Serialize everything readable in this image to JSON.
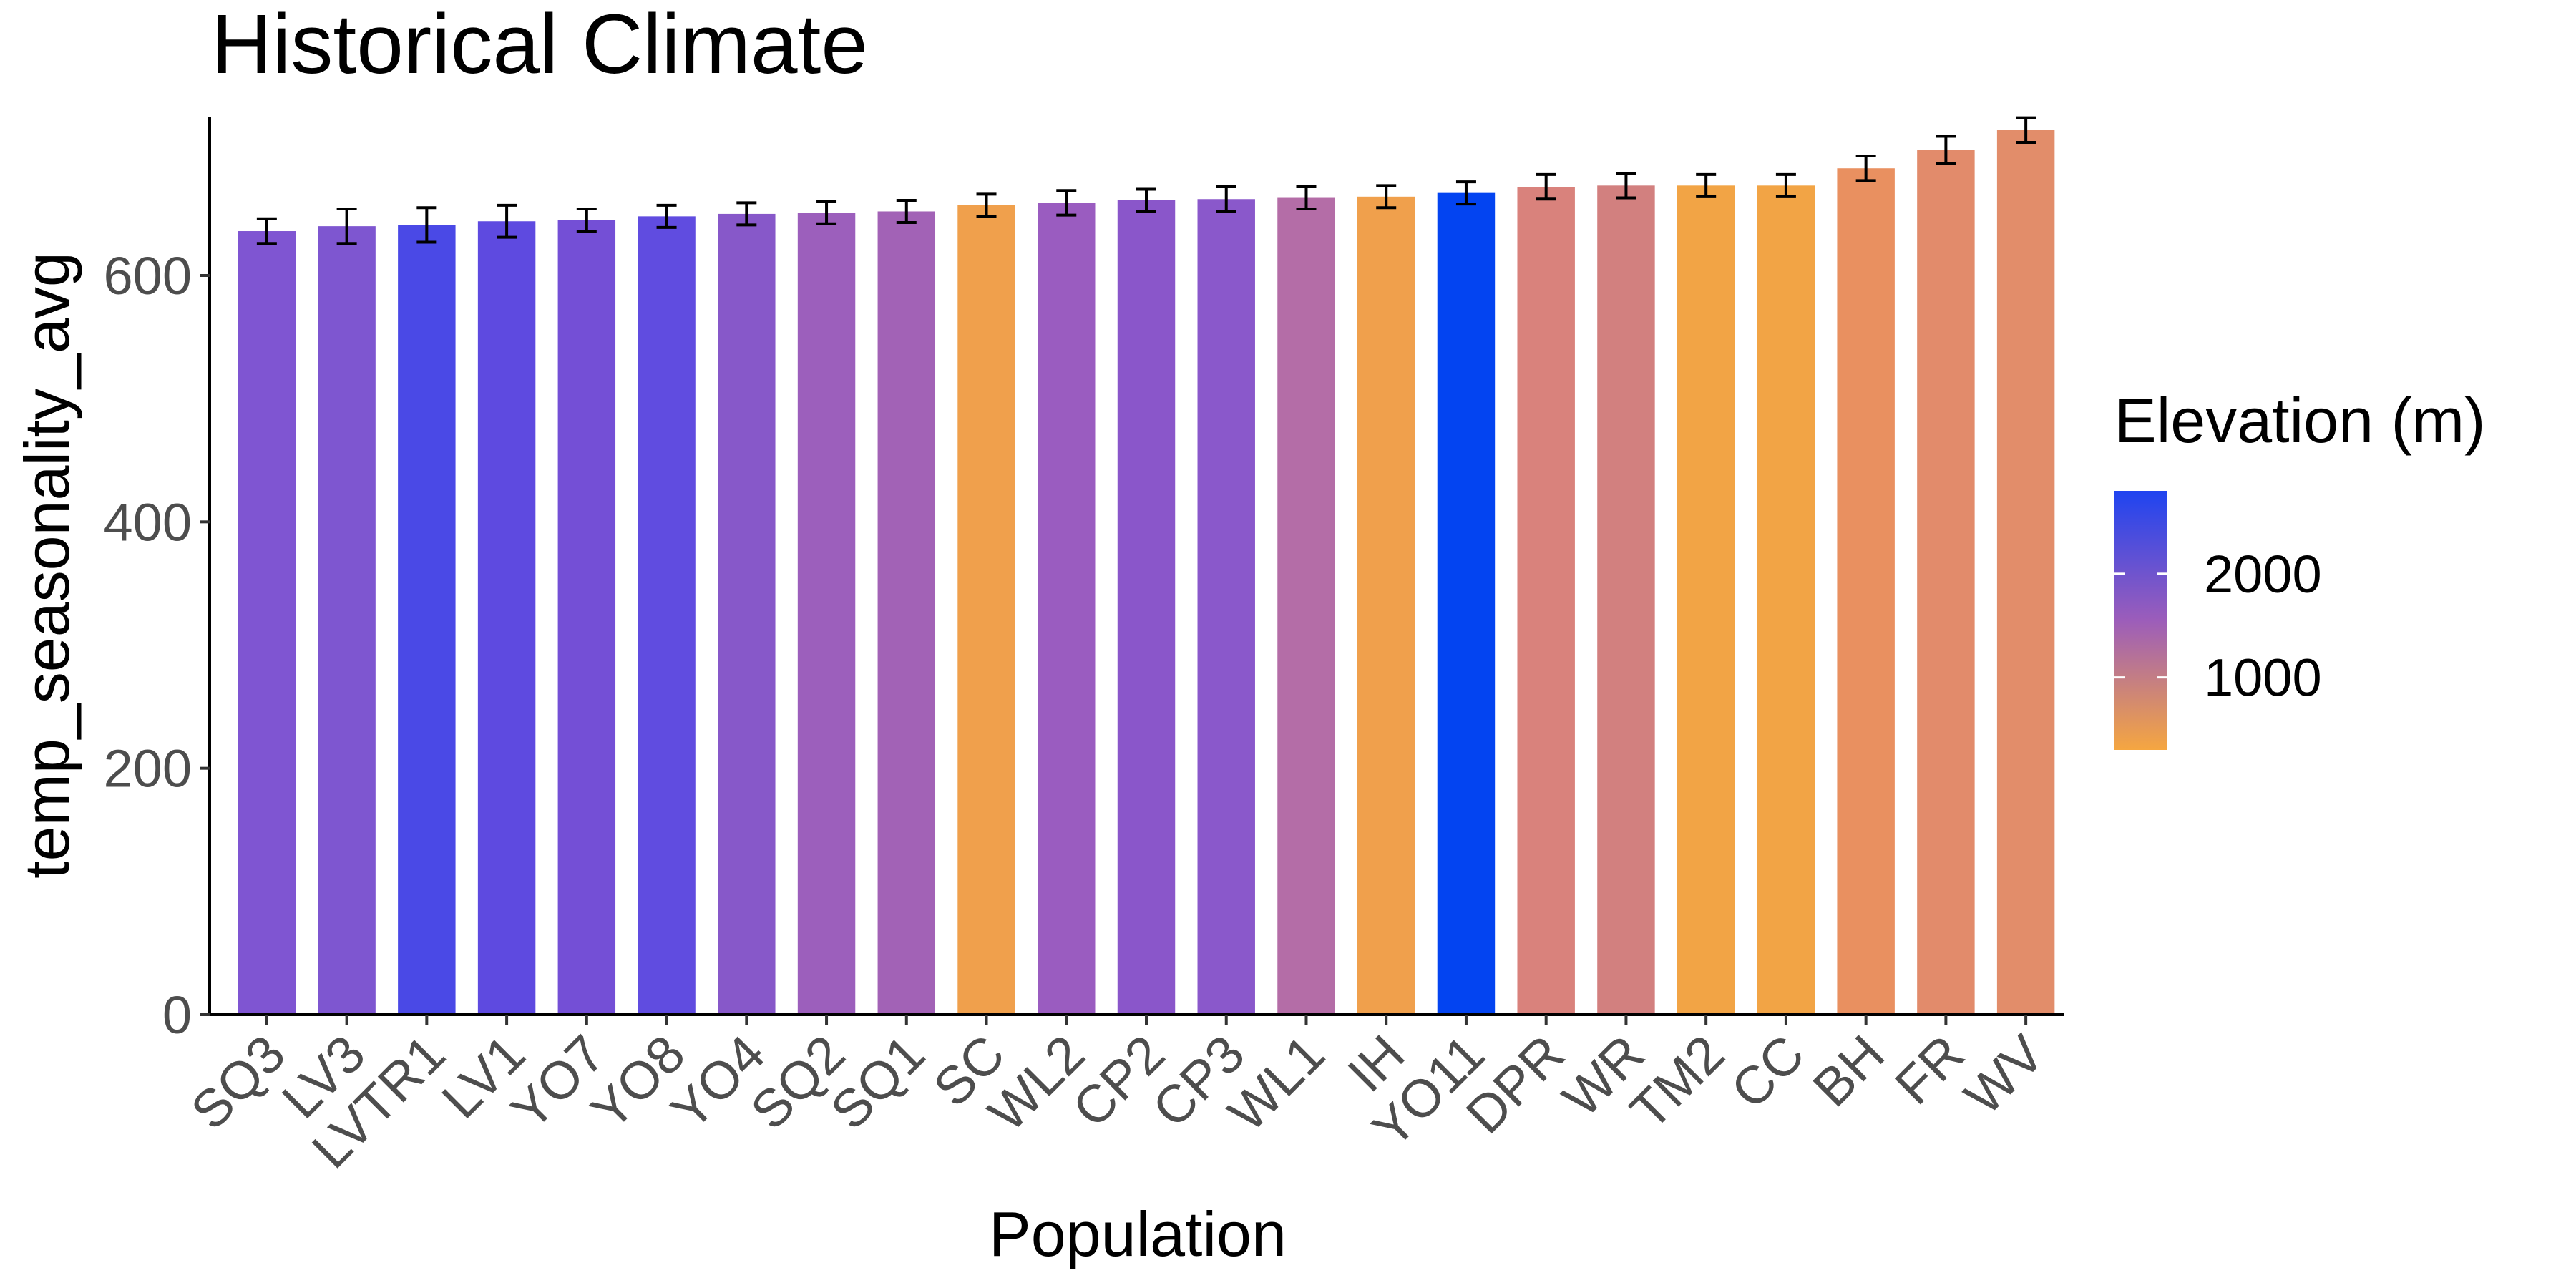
{
  "chart_data": {
    "type": "bar",
    "title": "Historical Climate",
    "xlabel": "Population",
    "ylabel": "temp_seasonality_avg",
    "ylim": [
      0,
      720
    ],
    "yticks": [
      0,
      200,
      400,
      600
    ],
    "grid": false,
    "categories": [
      "SQ3",
      "LV3",
      "LVTR1",
      "LV1",
      "YO7",
      "YO8",
      "YO4",
      "SQ2",
      "SQ1",
      "SC",
      "WL2",
      "CP2",
      "CP3",
      "WL1",
      "IH",
      "YO11",
      "DPR",
      "WR",
      "TM2",
      "CC",
      "BH",
      "FR",
      "WV"
    ],
    "values": [
      636,
      640,
      641,
      644,
      645,
      648,
      650,
      651,
      652,
      657,
      659,
      661,
      662,
      663,
      664,
      667,
      672,
      673,
      673,
      673,
      687,
      702,
      718
    ],
    "errors": [
      10,
      14,
      14,
      13,
      9,
      9,
      9,
      9,
      9,
      9,
      10,
      9,
      10,
      9,
      9,
      9,
      10,
      10,
      9,
      9,
      10,
      11,
      10
    ],
    "elevations": [
      2375,
      2350,
      2600,
      2500,
      2450,
      2500,
      2250,
      2150,
      2050,
      450,
      2100,
      2250,
      2250,
      1700,
      450,
      2800,
      1000,
      1100,
      400,
      300,
      600,
      700,
      750
    ],
    "colors": [
      "#7f55d2",
      "#7e56d0",
      "#4a49e6",
      "#5e4ae0",
      "#744fd6",
      "#604ce0",
      "#8758c9",
      "#9c5fbc",
      "#a262b6",
      "#f0a04c",
      "#9a5cc0",
      "#8a56ca",
      "#8a58cb",
      "#b46da7",
      "#f0a04c",
      "#0344f1",
      "#d9827c",
      "#d2807f",
      "#f2a445",
      "#f2a445",
      "#e99060",
      "#e28b6b",
      "#e28d6a"
    ],
    "legend": {
      "title": "Elevation (m)",
      "placement": "right",
      "breaks": [
        2000,
        1000
      ],
      "range": [
        300,
        2800
      ],
      "color_low": "#f5a641",
      "color_mid": "#9c5dba",
      "color_high": "#1f44f0"
    }
  }
}
